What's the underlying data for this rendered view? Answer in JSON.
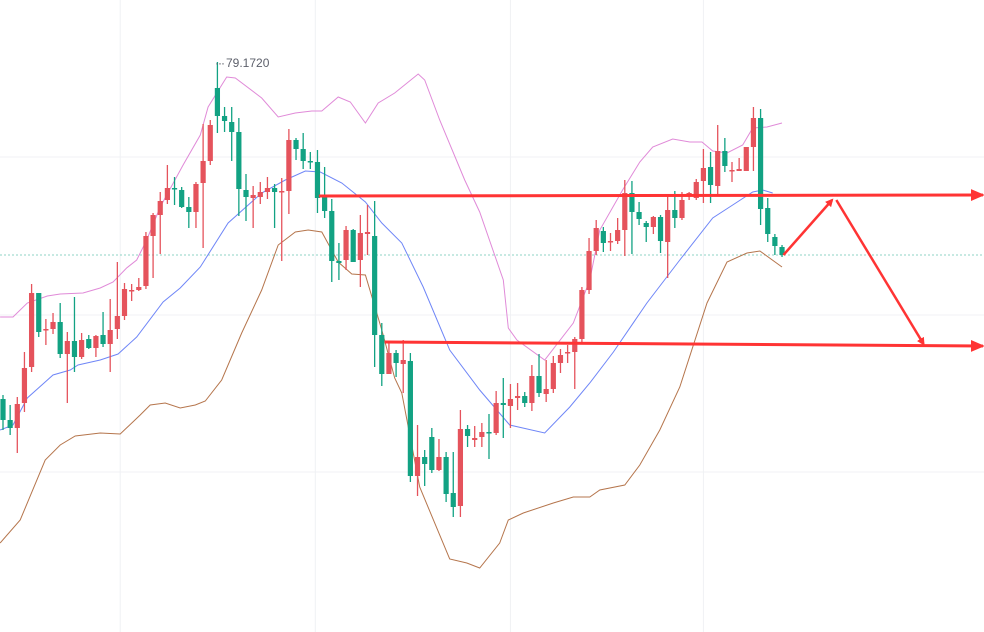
{
  "chart_data": {
    "type": "candlestick",
    "title": "",
    "xlabel": "",
    "ylabel": "",
    "xlim_bars": [
      0.58,
      138.26
    ],
    "ylim": [
      73.47,
      79.79
    ],
    "grid": true,
    "gridlines_price": [
      78.22,
      76.64,
      75.07
    ],
    "gridlines_bar": [
      17.4,
      44.7,
      72.0,
      99.0
    ],
    "last_price": 77.24,
    "high_label": "79.1720",
    "colors": {
      "up": "#e5535c",
      "down": "#12a283",
      "upper_band": "#e08ad8",
      "middle_band": "#6f86f7",
      "lower_band": "#b5754c",
      "annotation": "#ff3434",
      "last_price_line": "#8fd3c4"
    },
    "candles_ohlc": [
      [
        75.8,
        75.84,
        75.49,
        75.59
      ],
      [
        75.59,
        75.74,
        75.44,
        75.51
      ],
      [
        75.51,
        75.82,
        75.26,
        75.75
      ],
      [
        75.76,
        76.27,
        75.67,
        76.11
      ],
      [
        76.12,
        76.95,
        76.07,
        76.86
      ],
      [
        76.86,
        76.86,
        76.42,
        76.47
      ],
      [
        76.49,
        76.6,
        76.34,
        76.5
      ],
      [
        76.5,
        76.66,
        76.45,
        76.57
      ],
      [
        76.57,
        76.76,
        76.21,
        76.25
      ],
      [
        76.25,
        76.47,
        75.76,
        76.38
      ],
      [
        76.38,
        76.82,
        76.07,
        76.22
      ],
      [
        76.22,
        76.46,
        76.2,
        76.39
      ],
      [
        76.4,
        76.44,
        76.3,
        76.31
      ],
      [
        76.31,
        76.44,
        76.22,
        76.43
      ],
      [
        76.44,
        76.67,
        76.32,
        76.35
      ],
      [
        76.35,
        76.8,
        76.07,
        76.49
      ],
      [
        76.5,
        77.17,
        76.4,
        76.63
      ],
      [
        76.63,
        76.96,
        76.59,
        76.9
      ],
      [
        76.88,
        76.95,
        76.78,
        76.89
      ],
      [
        76.89,
        77.01,
        76.88,
        76.92
      ],
      [
        76.93,
        77.47,
        76.9,
        77.43
      ],
      [
        77.43,
        77.66,
        77.01,
        77.64
      ],
      [
        77.64,
        77.87,
        77.25,
        77.78
      ],
      [
        77.79,
        78.14,
        77.75,
        77.91
      ],
      [
        77.91,
        78.02,
        77.74,
        77.9
      ],
      [
        77.89,
        77.92,
        77.71,
        77.72
      ],
      [
        77.72,
        77.82,
        77.51,
        77.67
      ],
      [
        77.67,
        77.97,
        77.51,
        77.95
      ],
      [
        77.96,
        78.55,
        77.31,
        78.18
      ],
      [
        78.18,
        78.59,
        78.14,
        78.54
      ],
      [
        78.91,
        79.17,
        78.46,
        78.63
      ],
      [
        78.63,
        78.72,
        78.47,
        78.58
      ],
      [
        78.57,
        78.72,
        78.18,
        78.47
      ],
      [
        78.47,
        78.61,
        77.63,
        77.9
      ],
      [
        77.89,
        78.05,
        77.58,
        77.82
      ],
      [
        77.81,
        77.93,
        77.51,
        77.84
      ],
      [
        77.82,
        77.97,
        77.75,
        77.87
      ],
      [
        77.87,
        78.02,
        77.8,
        77.91
      ],
      [
        77.91,
        77.95,
        77.51,
        77.87
      ],
      [
        77.87,
        78.01,
        77.18,
        77.88
      ],
      [
        77.88,
        78.5,
        77.65,
        78.39
      ],
      [
        78.39,
        78.41,
        78.19,
        78.3
      ],
      [
        78.3,
        78.46,
        78.1,
        78.18
      ],
      [
        78.18,
        78.27,
        78.1,
        78.17
      ],
      [
        78.17,
        78.29,
        77.66,
        77.81
      ],
      [
        77.82,
        78.12,
        77.61,
        77.68
      ],
      [
        77.68,
        77.8,
        76.97,
        77.18
      ],
      [
        77.18,
        77.36,
        76.99,
        77.16
      ],
      [
        77.19,
        77.53,
        77.09,
        77.49
      ],
      [
        77.49,
        77.5,
        77.17,
        77.17
      ],
      [
        77.19,
        77.64,
        76.92,
        77.46
      ],
      [
        77.45,
        77.74,
        77.24,
        77.47
      ],
      [
        77.43,
        77.78,
        76.12,
        76.44
      ],
      [
        76.44,
        76.56,
        75.93,
        76.05
      ],
      [
        76.05,
        76.38,
        76.05,
        76.26
      ],
      [
        76.26,
        76.29,
        76.02,
        76.16
      ],
      [
        76.15,
        76.39,
        75.86,
        76.19
      ],
      [
        76.18,
        76.26,
        74.97,
        75.03
      ],
      [
        75.03,
        75.54,
        74.83,
        75.22
      ],
      [
        75.22,
        75.29,
        74.93,
        75.15
      ],
      [
        75.42,
        75.51,
        75.06,
        75.09
      ],
      [
        75.09,
        75.4,
        75.08,
        75.22
      ],
      [
        75.22,
        75.27,
        74.77,
        74.85
      ],
      [
        74.86,
        75.27,
        74.62,
        74.72
      ],
      [
        74.73,
        75.69,
        74.62,
        75.5
      ],
      [
        75.5,
        75.54,
        75.32,
        75.43
      ],
      [
        75.39,
        75.53,
        75.32,
        75.41
      ],
      [
        75.42,
        75.56,
        75.32,
        75.47
      ],
      [
        75.47,
        75.65,
        75.2,
        75.46
      ],
      [
        75.46,
        75.88,
        75.44,
        75.76
      ],
      [
        75.76,
        76.01,
        75.41,
        75.74
      ],
      [
        75.73,
        75.95,
        75.51,
        75.8
      ],
      [
        75.81,
        75.96,
        75.69,
        75.83
      ],
      [
        75.83,
        75.87,
        75.72,
        75.76
      ],
      [
        75.76,
        76.14,
        75.68,
        76.03
      ],
      [
        76.03,
        76.25,
        75.82,
        75.86
      ],
      [
        75.85,
        76.19,
        75.77,
        75.9
      ],
      [
        75.9,
        76.23,
        75.86,
        76.16
      ],
      [
        76.16,
        76.3,
        76.06,
        76.24
      ],
      [
        76.26,
        76.34,
        76.16,
        76.27
      ],
      [
        76.27,
        76.42,
        75.9,
        76.4
      ],
      [
        76.4,
        76.92,
        76.37,
        76.89
      ],
      [
        76.89,
        77.41,
        76.85,
        77.28
      ],
      [
        77.28,
        77.59,
        77.24,
        77.51
      ],
      [
        77.48,
        77.52,
        77.27,
        77.36
      ],
      [
        77.37,
        77.46,
        77.28,
        77.38
      ],
      [
        77.38,
        77.61,
        77.35,
        77.49
      ],
      [
        77.49,
        77.99,
        77.23,
        77.86
      ],
      [
        77.86,
        77.98,
        77.25,
        77.67
      ],
      [
        77.67,
        77.77,
        77.54,
        77.6
      ],
      [
        77.56,
        77.58,
        77.37,
        77.52
      ],
      [
        77.52,
        77.63,
        77.45,
        77.62
      ],
      [
        77.62,
        77.64,
        77.26,
        77.38
      ],
      [
        77.37,
        77.84,
        77.01,
        77.69
      ],
      [
        77.69,
        77.88,
        77.51,
        77.61
      ],
      [
        77.61,
        77.87,
        77.59,
        77.79
      ],
      [
        77.85,
        77.87,
        77.79,
        77.86
      ],
      [
        77.81,
        78.0,
        77.79,
        77.97
      ],
      [
        77.98,
        78.3,
        77.76,
        78.11
      ],
      [
        78.12,
        78.27,
        77.76,
        77.94
      ],
      [
        77.93,
        78.54,
        77.83,
        78.28
      ],
      [
        78.28,
        78.41,
        78.07,
        78.13
      ],
      [
        78.08,
        78.17,
        77.97,
        78.09
      ],
      [
        78.08,
        78.21,
        78.08,
        78.1
      ],
      [
        78.08,
        78.32,
        78.08,
        78.32
      ],
      [
        78.32,
        78.72,
        78.08,
        78.61
      ],
      [
        78.61,
        78.7,
        77.54,
        77.7
      ],
      [
        77.71,
        77.81,
        77.37,
        77.45
      ],
      [
        77.42,
        77.45,
        77.24,
        77.33
      ],
      [
        77.32,
        77.34,
        77.22,
        77.24
      ]
    ],
    "bollinger_upper": [
      [
        0.6,
        76.62
      ],
      [
        2.4,
        76.62
      ],
      [
        4.4,
        76.76
      ],
      [
        7.2,
        76.83
      ],
      [
        9.0,
        76.85
      ],
      [
        12.2,
        76.86
      ],
      [
        14.6,
        76.91
      ],
      [
        16.4,
        76.97
      ],
      [
        18.3,
        77.11
      ],
      [
        19.7,
        77.19
      ],
      [
        21.1,
        77.39
      ],
      [
        23.0,
        77.72
      ],
      [
        26.2,
        78.14
      ],
      [
        28.6,
        78.44
      ],
      [
        29.7,
        78.72
      ],
      [
        32.3,
        79.02
      ],
      [
        33.5,
        79.01
      ],
      [
        37.2,
        78.81
      ],
      [
        39.5,
        78.62
      ],
      [
        41.9,
        78.66
      ],
      [
        44.2,
        78.68
      ],
      [
        45.6,
        78.68
      ],
      [
        47.9,
        78.82
      ],
      [
        49.6,
        78.77
      ],
      [
        51.7,
        78.56
      ],
      [
        53.5,
        78.76
      ],
      [
        55.8,
        78.86
      ],
      [
        59.1,
        79.05
      ],
      [
        60.0,
        78.99
      ],
      [
        62.1,
        78.59
      ],
      [
        65.6,
        77.99
      ],
      [
        67.7,
        77.67
      ],
      [
        71.0,
        76.99
      ],
      [
        71.7,
        76.51
      ],
      [
        72.9,
        76.39
      ],
      [
        76.8,
        76.19
      ],
      [
        80.8,
        76.56
      ],
      [
        83.1,
        76.99
      ],
      [
        84.5,
        77.49
      ],
      [
        87.7,
        77.89
      ],
      [
        90.1,
        78.17
      ],
      [
        91.9,
        78.32
      ],
      [
        94.7,
        78.4
      ],
      [
        97.1,
        78.37
      ],
      [
        98.8,
        78.37
      ],
      [
        100.3,
        78.28
      ],
      [
        102.3,
        78.26
      ],
      [
        104.5,
        78.34
      ],
      [
        105.9,
        78.51
      ],
      [
        107.9,
        78.52
      ],
      [
        110.0,
        78.56
      ]
    ],
    "bollinger_middle": [
      [
        0.6,
        75.49
      ],
      [
        2.4,
        75.54
      ],
      [
        4.4,
        75.81
      ],
      [
        8.0,
        76.04
      ],
      [
        10.4,
        76.09
      ],
      [
        11.5,
        76.14
      ],
      [
        14.6,
        76.19
      ],
      [
        17.1,
        76.25
      ],
      [
        19.7,
        76.42
      ],
      [
        23.4,
        76.77
      ],
      [
        25.8,
        76.91
      ],
      [
        28.6,
        77.12
      ],
      [
        32.5,
        77.56
      ],
      [
        37.2,
        77.86
      ],
      [
        40.5,
        77.99
      ],
      [
        43.3,
        78.08
      ],
      [
        45.4,
        78.07
      ],
      [
        48.4,
        77.96
      ],
      [
        51.7,
        77.77
      ],
      [
        54.0,
        77.56
      ],
      [
        56.8,
        77.36
      ],
      [
        59.8,
        76.92
      ],
      [
        63.5,
        76.29
      ],
      [
        67.7,
        75.89
      ],
      [
        71.9,
        75.54
      ],
      [
        76.8,
        75.46
      ],
      [
        80.3,
        75.72
      ],
      [
        83.1,
        75.96
      ],
      [
        86.4,
        76.27
      ],
      [
        91.1,
        76.76
      ],
      [
        95.7,
        77.19
      ],
      [
        100.3,
        77.61
      ],
      [
        103.1,
        77.74
      ],
      [
        105.9,
        77.87
      ],
      [
        107.3,
        77.89
      ],
      [
        108.7,
        77.86
      ]
    ],
    "bollinger_lower": [
      [
        0.6,
        74.36
      ],
      [
        3.4,
        74.59
      ],
      [
        6.9,
        75.19
      ],
      [
        9.0,
        75.34
      ],
      [
        11.1,
        75.43
      ],
      [
        14.6,
        75.46
      ],
      [
        17.4,
        75.45
      ],
      [
        20.2,
        75.64
      ],
      [
        21.6,
        75.74
      ],
      [
        23.7,
        75.76
      ],
      [
        25.8,
        75.71
      ],
      [
        27.9,
        75.74
      ],
      [
        29.3,
        75.78
      ],
      [
        31.6,
        75.99
      ],
      [
        34.4,
        76.46
      ],
      [
        37.2,
        76.89
      ],
      [
        39.5,
        77.34
      ],
      [
        41.9,
        77.47
      ],
      [
        43.7,
        77.49
      ],
      [
        45.6,
        77.47
      ],
      [
        47.9,
        77.17
      ],
      [
        49.8,
        77.05
      ],
      [
        51.7,
        77.04
      ],
      [
        54.0,
        76.49
      ],
      [
        55.8,
        76.01
      ],
      [
        56.8,
        75.86
      ],
      [
        59.3,
        74.92
      ],
      [
        63.5,
        74.2
      ],
      [
        65.9,
        74.16
      ],
      [
        67.7,
        74.11
      ],
      [
        70.5,
        74.36
      ],
      [
        71.7,
        74.59
      ],
      [
        73.8,
        74.66
      ],
      [
        78.0,
        74.76
      ],
      [
        80.8,
        74.82
      ],
      [
        83.1,
        74.82
      ],
      [
        84.5,
        74.89
      ],
      [
        88.0,
        74.94
      ],
      [
        90.1,
        75.14
      ],
      [
        92.9,
        75.49
      ],
      [
        95.7,
        75.92
      ],
      [
        99.5,
        76.76
      ],
      [
        102.3,
        77.17
      ],
      [
        105.1,
        77.26
      ],
      [
        106.9,
        77.28
      ],
      [
        110.0,
        77.12
      ]
    ],
    "annotations": [
      {
        "type": "ray",
        "name": "resistance-line",
        "from": [
          45.2,
          77.83
        ],
        "to": [
          138.1,
          77.84
        ]
      },
      {
        "type": "ray",
        "name": "support-line",
        "from": [
          54.4,
          76.37
        ],
        "to": [
          138.1,
          76.33
        ]
      },
      {
        "type": "arrow",
        "name": "projection-up-arrow",
        "from": [
          110.2,
          77.24
        ],
        "to": [
          117.0,
          77.79
        ]
      },
      {
        "type": "arrow",
        "name": "projection-down-arrow",
        "from": [
          117.6,
          77.79
        ],
        "to": [
          129.8,
          76.35
        ]
      }
    ]
  }
}
